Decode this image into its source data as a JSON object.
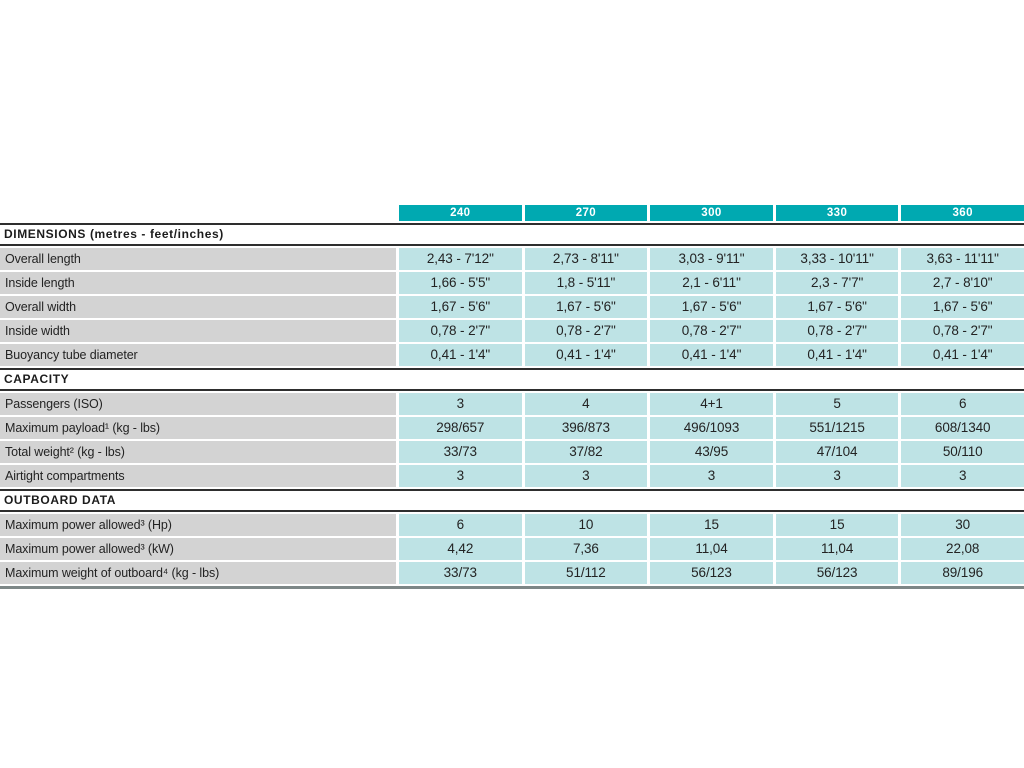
{
  "colors": {
    "header_teal": "#00a9b1",
    "cell_teal": "#bee3e5",
    "label_gray": "#d3d3d3",
    "rule_dark": "#2e2e2e",
    "bottom_rule_gray": "#7d8787",
    "header_text": "#ffffff",
    "body_text": "#232323"
  },
  "table": {
    "columns": [
      "240",
      "270",
      "300",
      "330",
      "360"
    ],
    "sections": [
      {
        "title": "DIMENSIONS (metres - feet/inches)",
        "rows": [
          {
            "label": "Overall length",
            "values": [
              "2,43 - 7'12\"",
              "2,73 - 8'11\"",
              "3,03 - 9'11\"",
              "3,33 - 10'11\"",
              "3,63 - 11'11\""
            ]
          },
          {
            "label": "Inside length",
            "values": [
              "1,66 - 5'5\"",
              "1,8 - 5'11\"",
              "2,1 - 6'11\"",
              "2,3 - 7'7\"",
              "2,7 - 8'10\""
            ]
          },
          {
            "label": "Overall width",
            "values": [
              "1,67 - 5'6\"",
              "1,67 - 5'6\"",
              "1,67 - 5'6\"",
              "1,67 - 5'6\"",
              "1,67 - 5'6\""
            ]
          },
          {
            "label": "Inside width",
            "values": [
              "0,78 - 2'7\"",
              "0,78 - 2'7\"",
              "0,78 - 2'7\"",
              "0,78 - 2'7\"",
              "0,78 - 2'7\""
            ]
          },
          {
            "label": "Buoyancy tube diameter",
            "values": [
              "0,41 - 1'4\"",
              "0,41 - 1'4\"",
              "0,41 - 1'4\"",
              "0,41 - 1'4\"",
              "0,41 - 1'4\""
            ]
          }
        ]
      },
      {
        "title": "CAPACITY",
        "rows": [
          {
            "label": "Passengers (ISO)",
            "values": [
              "3",
              "4",
              "4+1",
              "5",
              "6"
            ]
          },
          {
            "label": "Maximum payload¹ (kg - lbs)",
            "values": [
              "298/657",
              "396/873",
              "496/1093",
              "551/1215",
              "608/1340"
            ]
          },
          {
            "label": "Total weight² (kg - lbs)",
            "values": [
              "33/73",
              "37/82",
              "43/95",
              "47/104",
              "50/110"
            ]
          },
          {
            "label": "Airtight compartments",
            "values": [
              "3",
              "3",
              "3",
              "3",
              "3"
            ]
          }
        ]
      },
      {
        "title": "OUTBOARD DATA",
        "rows": [
          {
            "label": "Maximum power allowed³ (Hp)",
            "values": [
              "6",
              "10",
              "15",
              "15",
              "30"
            ]
          },
          {
            "label": "Maximum power allowed³ (kW)",
            "values": [
              "4,42",
              "7,36",
              "11,04",
              "11,04",
              "22,08"
            ]
          },
          {
            "label": "Maximum weight of outboard⁴ (kg - lbs)",
            "values": [
              "33/73",
              "51/112",
              "56/123",
              "56/123",
              "89/196"
            ]
          }
        ]
      }
    ]
  }
}
